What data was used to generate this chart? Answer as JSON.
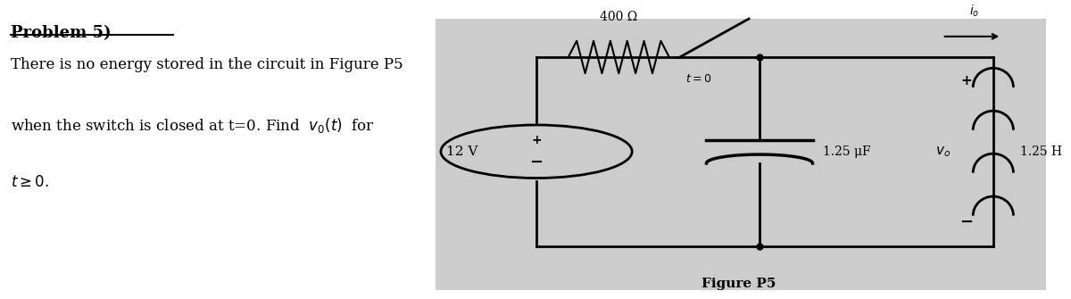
{
  "title": "Problem 5)",
  "problem_text_line1": "There is no energy stored in the circuit in Figure P5",
  "problem_text_line2": "when the switch is closed at t=0. Find  $v_0(t)$  for",
  "problem_text_line3": "$t \\geq 0$.",
  "figure_label": "Figure P5",
  "resistor_label": "400 Ω",
  "switch_label": "t = 0",
  "capacitor_label": "1.25 μF",
  "inductor_label": "1.25 H",
  "voltage_label": "12 V",
  "current_label": "$i_o$",
  "vo_label": "$v_o$",
  "circuit_bg": "#cccccc",
  "text_color": "#000000",
  "bg_color": "#ffffff"
}
